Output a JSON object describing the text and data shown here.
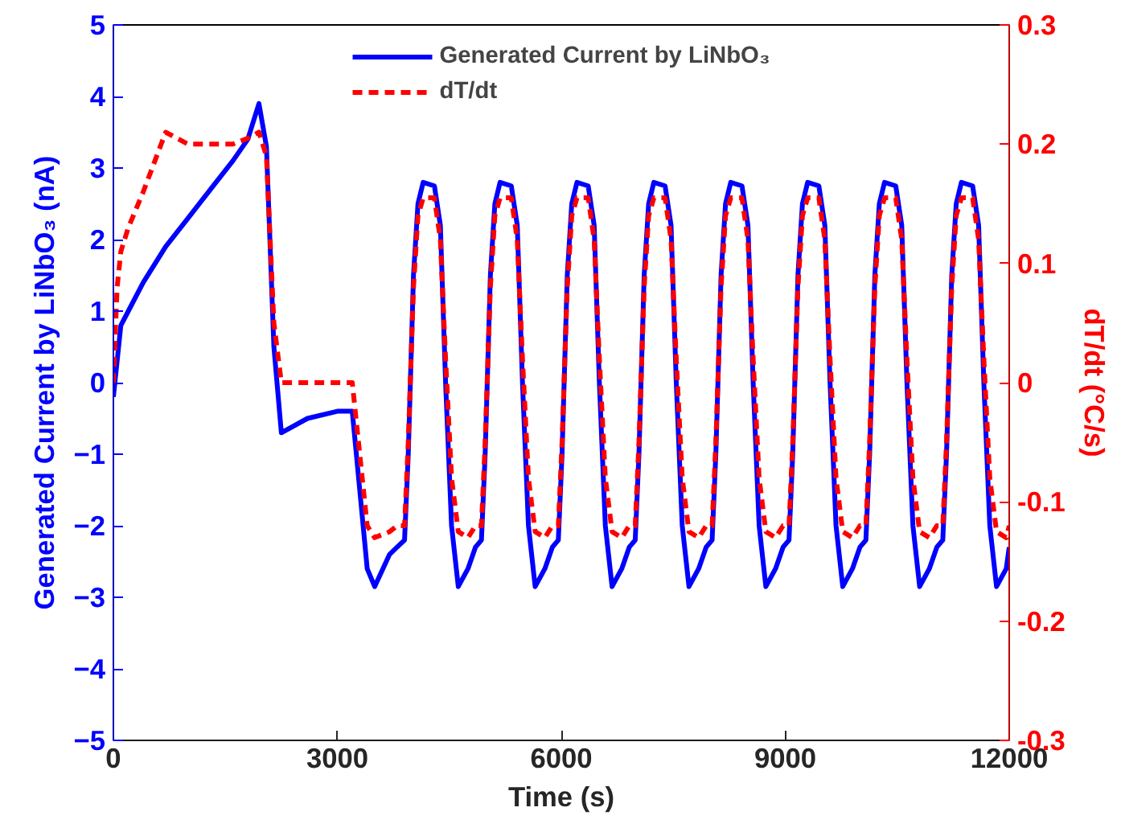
{
  "chart_data": {
    "type": "line",
    "xlabel": "Time (s)",
    "ylabel": "Generated Current by LiNbO₃ (nA)",
    "y2label": "dT/dt (°C/s)",
    "xlim": [
      0,
      12000
    ],
    "xticks": [
      0,
      3000,
      6000,
      9000,
      12000
    ],
    "ylim": [
      -5,
      5
    ],
    "yticks": [
      -5,
      -4,
      -3,
      -2,
      -1,
      0,
      1,
      2,
      3,
      4,
      5
    ],
    "y2lim": [
      -0.3,
      0.3
    ],
    "y2ticks": [
      {
        "value": -0.3,
        "label": "-0.3"
      },
      {
        "value": -0.2,
        "label": "-0.2"
      },
      {
        "value": -0.1,
        "label": "-0.1"
      },
      {
        "value": 0,
        "label": "0"
      },
      {
        "value": 0.1,
        "label": "0.1"
      },
      {
        "value": 0.2,
        "label": "0.2"
      },
      {
        "value": 0.3,
        "label": "0.3"
      }
    ],
    "grid": false,
    "legend": "top",
    "x": [
      0,
      50,
      100,
      200,
      400,
      700,
      1000,
      1300,
      1600,
      1800,
      1950,
      2050,
      2150,
      2250,
      2600,
      3000,
      3200,
      3300,
      3400,
      3500,
      3700,
      3800,
      3900,
      3950,
      4020,
      4080,
      4150,
      4300,
      4380,
      4450,
      4530,
      4620,
      4750,
      4850,
      4930,
      4980,
      5050,
      5110,
      5180,
      5330,
      5410,
      5480,
      5560,
      5650,
      5780,
      5880,
      5960,
      6010,
      6080,
      6140,
      6210,
      6360,
      6440,
      6510,
      6590,
      6680,
      6810,
      6910,
      6990,
      7040,
      7110,
      7170,
      7240,
      7390,
      7470,
      7540,
      7620,
      7710,
      7840,
      7940,
      8020,
      8070,
      8140,
      8200,
      8270,
      8420,
      8500,
      8570,
      8650,
      8740,
      8870,
      8970,
      9050,
      9100,
      9170,
      9230,
      9300,
      9450,
      9530,
      9600,
      9680,
      9770,
      9900,
      10000,
      10080,
      10130,
      10200,
      10260,
      10330,
      10480,
      10560,
      10630,
      10710,
      10800,
      10930,
      11030,
      11110,
      11160,
      11230,
      11290,
      11360,
      11510,
      11590,
      11660,
      11740,
      11830,
      11960,
      12000
    ],
    "series": [
      {
        "name": "Generated Current by LiNbO₃",
        "color": "#0000ff",
        "line_style": "solid",
        "values": [
          -0.2,
          0.3,
          0.8,
          1.0,
          1.4,
          1.9,
          2.3,
          2.7,
          3.1,
          3.4,
          3.9,
          3.3,
          0.5,
          -0.7,
          -0.5,
          -0.4,
          -0.4,
          -1.5,
          -2.6,
          -2.85,
          -2.4,
          -2.3,
          -2.2,
          -1.0,
          1.5,
          2.5,
          2.8,
          2.75,
          2.2,
          0,
          -2.0,
          -2.85,
          -2.6,
          -2.3,
          -2.2,
          -1.0,
          1.5,
          2.5,
          2.8,
          2.75,
          2.2,
          0,
          -2.0,
          -2.85,
          -2.6,
          -2.3,
          -2.2,
          -1.0,
          1.5,
          2.5,
          2.8,
          2.75,
          2.2,
          0,
          -2.0,
          -2.85,
          -2.6,
          -2.3,
          -2.2,
          -1.0,
          1.5,
          2.5,
          2.8,
          2.75,
          2.2,
          0,
          -2.0,
          -2.85,
          -2.6,
          -2.3,
          -2.2,
          -1.0,
          1.5,
          2.5,
          2.8,
          2.75,
          2.2,
          0,
          -2.0,
          -2.85,
          -2.6,
          -2.3,
          -2.2,
          -1.0,
          1.5,
          2.5,
          2.8,
          2.75,
          2.2,
          0,
          -2.0,
          -2.85,
          -2.6,
          -2.3,
          -2.2,
          -1.0,
          1.5,
          2.5,
          2.8,
          2.75,
          2.2,
          0,
          -2.0,
          -2.85,
          -2.6,
          -2.3,
          -2.2,
          -1.0,
          1.5,
          2.5,
          2.8,
          2.75,
          2.2,
          0,
          -2.0,
          -2.85,
          -2.6,
          -2.3
        ]
      },
      {
        "name": "dT/dt",
        "color": "#ff0000",
        "line_style": "dashed",
        "axis": "y2",
        "values": [
          0.0,
          0.08,
          0.11,
          0.13,
          0.16,
          0.21,
          0.2,
          0.2,
          0.2,
          0.205,
          0.21,
          0.19,
          0.05,
          0.0,
          0.0,
          0.0,
          0.0,
          -0.06,
          -0.12,
          -0.13,
          -0.125,
          -0.12,
          -0.12,
          -0.05,
          0.08,
          0.14,
          0.155,
          0.155,
          0.12,
          0.02,
          -0.08,
          -0.125,
          -0.13,
          -0.12,
          -0.12,
          -0.05,
          0.08,
          0.14,
          0.155,
          0.155,
          0.12,
          0.02,
          -0.08,
          -0.125,
          -0.13,
          -0.12,
          -0.12,
          -0.05,
          0.08,
          0.14,
          0.155,
          0.155,
          0.12,
          0.02,
          -0.08,
          -0.125,
          -0.13,
          -0.12,
          -0.12,
          -0.05,
          0.08,
          0.14,
          0.155,
          0.155,
          0.12,
          0.02,
          -0.08,
          -0.125,
          -0.13,
          -0.12,
          -0.12,
          -0.05,
          0.08,
          0.14,
          0.155,
          0.155,
          0.12,
          0.02,
          -0.08,
          -0.125,
          -0.13,
          -0.12,
          -0.12,
          -0.05,
          0.08,
          0.14,
          0.155,
          0.155,
          0.12,
          0.02,
          -0.08,
          -0.125,
          -0.13,
          -0.12,
          -0.12,
          -0.05,
          0.08,
          0.14,
          0.155,
          0.155,
          0.12,
          0.02,
          -0.08,
          -0.125,
          -0.13,
          -0.12,
          -0.12,
          -0.05,
          0.08,
          0.14,
          0.155,
          0.155,
          0.12,
          0.02,
          -0.08,
          -0.125,
          -0.13,
          -0.12
        ]
      }
    ]
  }
}
